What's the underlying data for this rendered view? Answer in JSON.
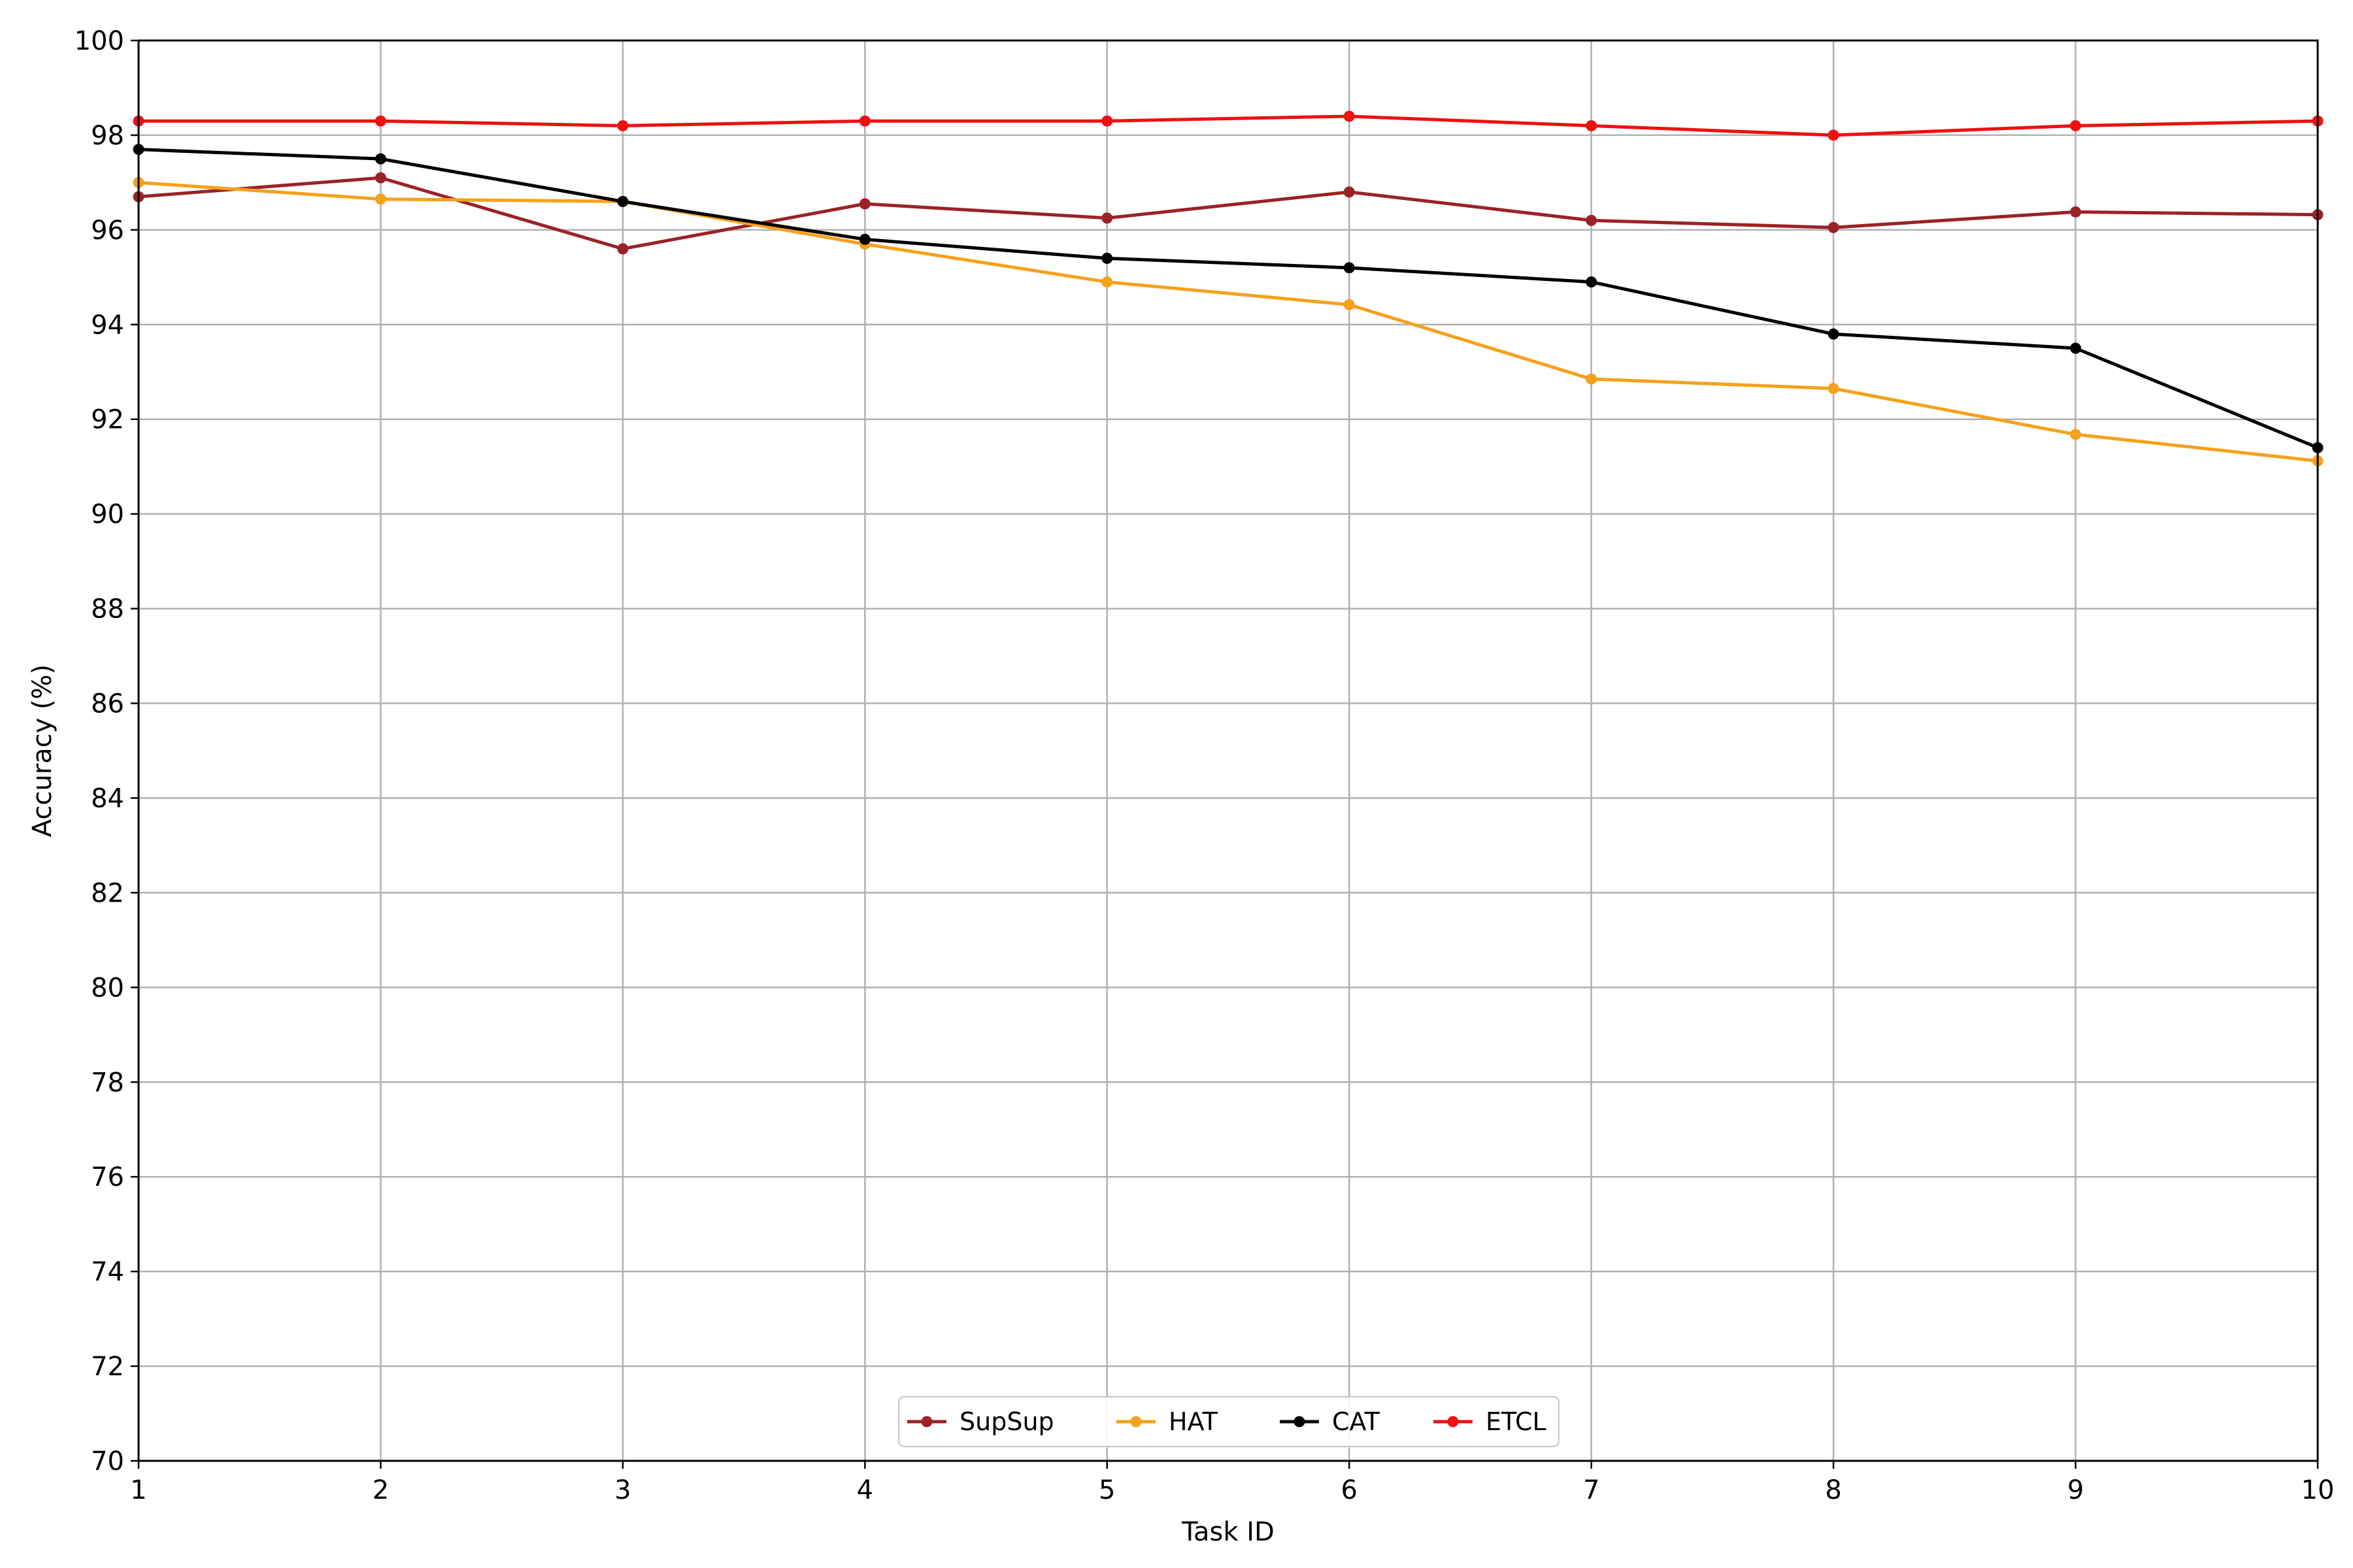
{
  "chart_data": {
    "type": "line",
    "xlabel": "Task ID",
    "ylabel": "Accuracy (%)",
    "xlim": [
      1,
      10
    ],
    "ylim": [
      70,
      100
    ],
    "x": [
      1,
      2,
      3,
      4,
      5,
      6,
      7,
      8,
      9,
      10
    ],
    "x_ticks": [
      "1",
      "2",
      "3",
      "4",
      "5",
      "6",
      "7",
      "8",
      "9",
      "10"
    ],
    "y_ticks": [
      "70",
      "72",
      "74",
      "76",
      "78",
      "80",
      "82",
      "84",
      "86",
      "88",
      "90",
      "92",
      "94",
      "96",
      "98",
      "100"
    ],
    "grid": true,
    "legend_position": "bottom-center",
    "series": [
      {
        "name": "SupSup",
        "color": "#9b2226",
        "values": [
          96.7,
          97.1,
          95.6,
          96.55,
          96.25,
          96.8,
          96.2,
          96.05,
          96.38,
          96.32
        ]
      },
      {
        "name": "HAT",
        "color": "#f5a11c",
        "values": [
          97.0,
          96.65,
          96.6,
          95.7,
          94.9,
          94.42,
          92.85,
          92.65,
          91.68,
          91.12
        ]
      },
      {
        "name": "CAT",
        "color": "#000000",
        "values": [
          97.7,
          97.5,
          96.6,
          95.8,
          95.4,
          95.2,
          94.9,
          93.8,
          93.5,
          91.4
        ]
      },
      {
        "name": "ETCL",
        "color": "#ee1111",
        "values": [
          98.3,
          98.3,
          98.2,
          98.3,
          98.3,
          98.4,
          98.2,
          98.0,
          98.2,
          98.3
        ]
      }
    ]
  }
}
